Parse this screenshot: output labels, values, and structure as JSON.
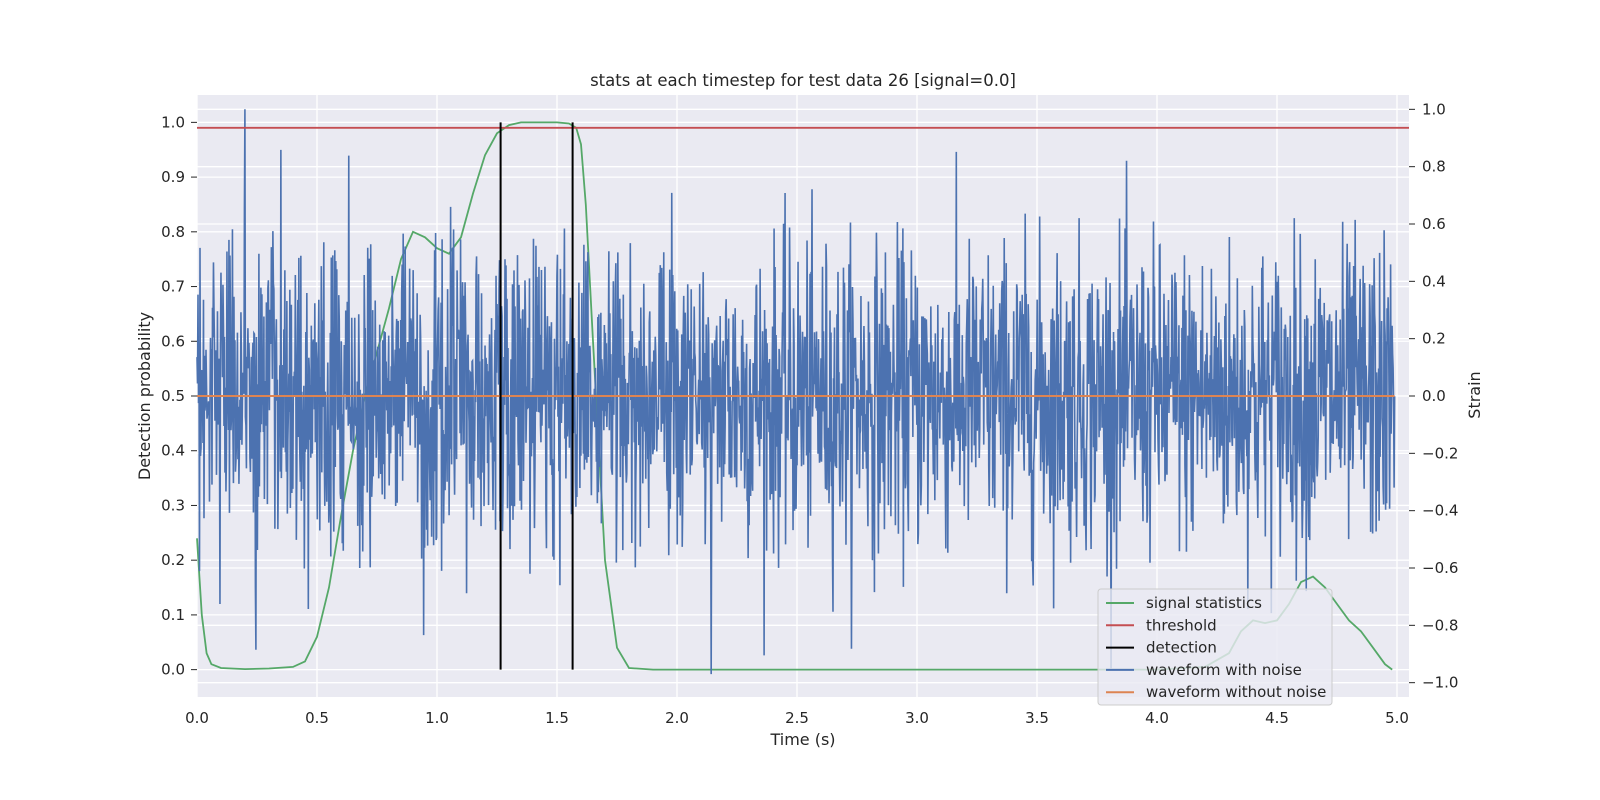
{
  "chart_data": {
    "type": "line",
    "title": "stats at each timestep for test data 26 [signal=0.0]",
    "xlabel": "Time (s)",
    "ylabel_left": "Detection probability",
    "ylabel_right": "Strain",
    "xlim": [
      0.0,
      5.05
    ],
    "ylim_left": [
      -0.05,
      1.05
    ],
    "ylim_right": [
      -1.05,
      1.05
    ],
    "x_ticks": [
      "0.0",
      "0.5",
      "1.0",
      "1.5",
      "2.0",
      "2.5",
      "3.0",
      "3.5",
      "4.0",
      "4.5",
      "5.0"
    ],
    "y_left_ticks": [
      "0.0",
      "0.1",
      "0.2",
      "0.3",
      "0.4",
      "0.5",
      "0.6",
      "0.7",
      "0.8",
      "0.9",
      "1.0"
    ],
    "y_right_ticks": [
      "−1.0",
      "−0.8",
      "−0.6",
      "−0.4",
      "−0.2",
      "0.0",
      "0.2",
      "0.4",
      "0.6",
      "0.8",
      "1.0"
    ],
    "grid": true,
    "background": "#eaeaf2",
    "legend_position": "lower right",
    "series": [
      {
        "name": "signal statistics",
        "axis": "left",
        "color": "#55a868",
        "x": [
          0.0,
          0.02,
          0.04,
          0.06,
          0.1,
          0.2,
          0.3,
          0.4,
          0.45,
          0.5,
          0.55,
          0.6,
          0.65,
          0.7,
          0.75,
          0.8,
          0.85,
          0.9,
          0.95,
          1.0,
          1.05,
          1.1,
          1.15,
          1.2,
          1.25,
          1.3,
          1.35,
          1.4,
          1.5,
          1.55,
          1.58,
          1.6,
          1.62,
          1.65,
          1.7,
          1.75,
          1.8,
          1.9,
          2.0,
          2.5,
          3.0,
          3.5,
          4.0,
          4.2,
          4.3,
          4.35,
          4.4,
          4.45,
          4.5,
          4.55,
          4.6,
          4.65,
          4.7,
          4.75,
          4.8,
          4.85,
          4.9,
          4.95,
          4.98
        ],
        "values": [
          0.24,
          0.1,
          0.03,
          0.01,
          0.003,
          0.001,
          0.002,
          0.005,
          0.015,
          0.06,
          0.15,
          0.28,
          0.4,
          0.5,
          0.58,
          0.66,
          0.75,
          0.8,
          0.79,
          0.77,
          0.76,
          0.79,
          0.87,
          0.94,
          0.98,
          0.995,
          1.0,
          1.0,
          1.0,
          0.998,
          0.99,
          0.96,
          0.85,
          0.6,
          0.2,
          0.04,
          0.003,
          0.0,
          0.0,
          0.0,
          0.0,
          0.0,
          0.0,
          0.005,
          0.03,
          0.07,
          0.09,
          0.085,
          0.09,
          0.12,
          0.16,
          0.17,
          0.15,
          0.12,
          0.09,
          0.07,
          0.04,
          0.01,
          0.0
        ]
      },
      {
        "name": "threshold",
        "axis": "left",
        "color": "#c44e52",
        "value": 0.99
      },
      {
        "name": "detection",
        "axis": "left",
        "color": "#000000",
        "x": [
          1.265,
          1.565
        ],
        "range": [
          0.0,
          1.0
        ]
      },
      {
        "name": "waveform with noise",
        "axis": "right",
        "color": "#4c72b0",
        "description_range": [
          -1.0,
          1.0
        ],
        "n_points": 2400,
        "peak_max": 1.0,
        "peak_min": -0.97
      },
      {
        "name": "waveform without noise",
        "axis": "right",
        "color": "#dd8452",
        "value": 0.0
      }
    ]
  }
}
